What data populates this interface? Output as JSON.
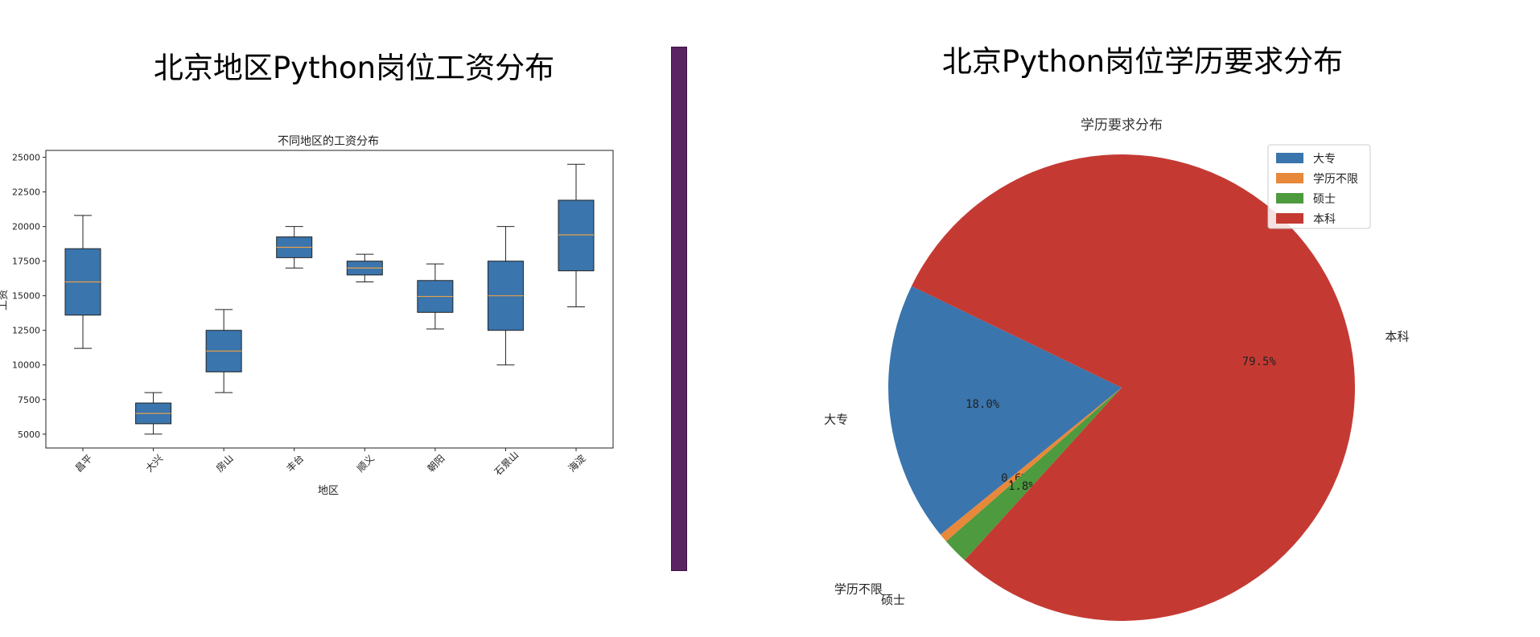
{
  "left_panel": {
    "title": "北京地区Python岗位工资分布",
    "chart_data": {
      "type": "box",
      "title": "不同地区的工资分布",
      "xlabel": "地区",
      "ylabel": "工资",
      "ylim": [
        4000,
        25500
      ],
      "yticks": [
        5000,
        7500,
        10000,
        12500,
        15000,
        17500,
        20000,
        22500,
        25000
      ],
      "categories": [
        "昌平",
        "大兴",
        "房山",
        "丰台",
        "顺义",
        "朝阳",
        "石景山",
        "海淀"
      ],
      "boxes": [
        {
          "whisker_low": 11200,
          "q1": 13600,
          "median": 16000,
          "q3": 18400,
          "whisker_high": 20800
        },
        {
          "whisker_low": 5000,
          "q1": 5750,
          "median": 6500,
          "q3": 7250,
          "whisker_high": 8000
        },
        {
          "whisker_low": 8000,
          "q1": 9500,
          "median": 11000,
          "q3": 12500,
          "whisker_high": 14000
        },
        {
          "whisker_low": 17000,
          "q1": 17750,
          "median": 18500,
          "q3": 19250,
          "whisker_high": 20000
        },
        {
          "whisker_low": 16000,
          "q1": 16500,
          "median": 17000,
          "q3": 17500,
          "whisker_high": 18000
        },
        {
          "whisker_low": 12600,
          "q1": 13800,
          "median": 14950,
          "q3": 16100,
          "whisker_high": 17300
        },
        {
          "whisker_low": 10000,
          "q1": 12500,
          "median": 15000,
          "q3": 17500,
          "whisker_high": 20000
        },
        {
          "whisker_low": 14200,
          "q1": 16800,
          "median": 19400,
          "q3": 21900,
          "whisker_high": 24500
        }
      ],
      "box_color": "#3a75ad",
      "median_color": "#e8a04a",
      "grid": false
    }
  },
  "right_panel": {
    "title": "北京Python岗位学历要求分布",
    "chart_data": {
      "type": "pie",
      "title": "学历要求分布",
      "labels": [
        "大专",
        "学历不限",
        "硕士",
        "本科"
      ],
      "values": [
        18.0,
        0.6,
        1.8,
        79.5
      ],
      "percent_labels": [
        "18.0%",
        "0.6%",
        "1.8%",
        "79.5%"
      ],
      "colors": [
        "#3a75ad",
        "#e8883a",
        "#4e9a3e",
        "#c43a33"
      ],
      "legend_location": "top-right",
      "start_angle_deg": 154.2
    }
  },
  "divider_color": "#5a2462"
}
